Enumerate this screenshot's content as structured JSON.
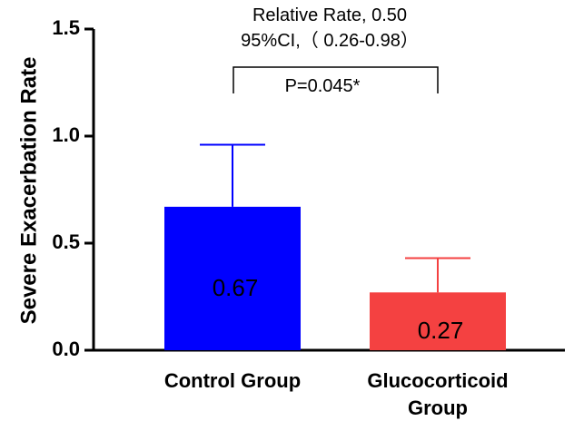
{
  "chart_data": {
    "type": "bar",
    "ylabel": "Severe Exacerbation Rate",
    "xlabel": "",
    "ylim": [
      0,
      1.5
    ],
    "yticks": [
      0.0,
      0.5,
      1.0,
      1.5
    ],
    "ytick_labels": [
      "0.0",
      "0.5",
      "1.0",
      "1.5"
    ],
    "categories": [
      {
        "lines": [
          "Control Group"
        ]
      },
      {
        "lines": [
          "Glucocorticoid",
          "Group"
        ]
      }
    ],
    "values": [
      0.67,
      0.27
    ],
    "value_labels": [
      "0.67",
      "0.27"
    ],
    "error_upper": [
      0.96,
      0.43
    ],
    "colors": [
      "#0000ff",
      "#f44141"
    ],
    "grid": false,
    "annotation": {
      "line1": "Relative Rate, 0.50",
      "line2": "95%CI,（ 0.26-0.98）",
      "pvalue": "P=0.045*"
    }
  }
}
